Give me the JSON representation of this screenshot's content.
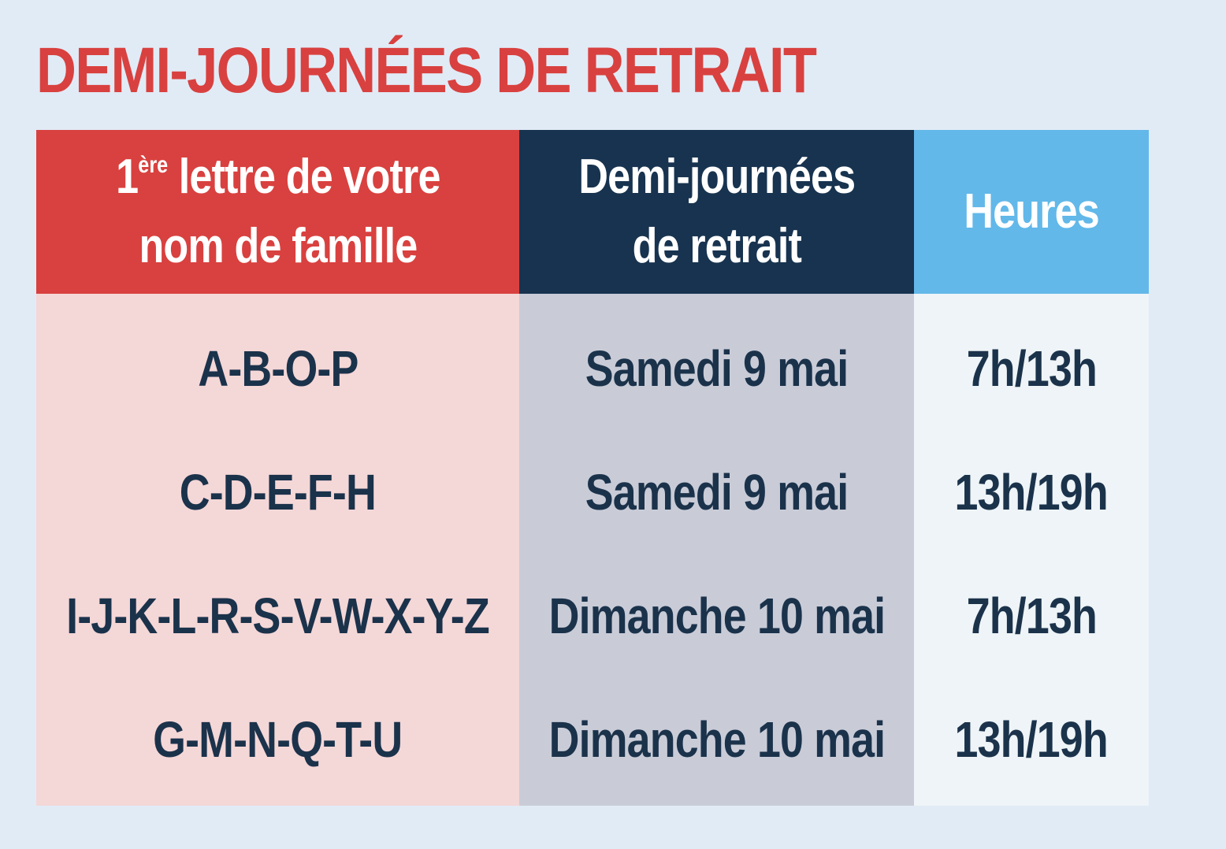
{
  "title": "DEMI-JOURNÉES DE RETRAIT",
  "headers": {
    "col1": {
      "number": "1",
      "superscript": "ère",
      "line1_rest": " lettre de votre",
      "line2": "nom de famille"
    },
    "col2": {
      "line1": "Demi-journées",
      "line2": "de retrait"
    },
    "col3": {
      "text": "Heures"
    }
  },
  "rows": [
    {
      "letters": "A-B-O-P",
      "day": "Samedi 9 mai",
      "hours": "7h/13h"
    },
    {
      "letters": "C-D-E-F-H",
      "day": "Samedi 9 mai",
      "hours": "13h/19h"
    },
    {
      "letters": "I-J-K-L-R-S-V-W-X-Y-Z",
      "day": "Dimanche 10 mai",
      "hours": "7h/13h"
    },
    {
      "letters": "G-M-N-Q-T-U",
      "day": "Dimanche 10 mai",
      "hours": "13h/19h"
    }
  ],
  "colors": {
    "background": "#e1ebf6",
    "title": "#d8413f",
    "header_col1": "#d8413f",
    "header_col2": "#17334f",
    "header_col3": "#62b8e9",
    "body_col1": "#f4d7d7",
    "body_col2": "#c9ccd7",
    "body_col3": "#eef4f7",
    "body_text": "#1b324b"
  }
}
